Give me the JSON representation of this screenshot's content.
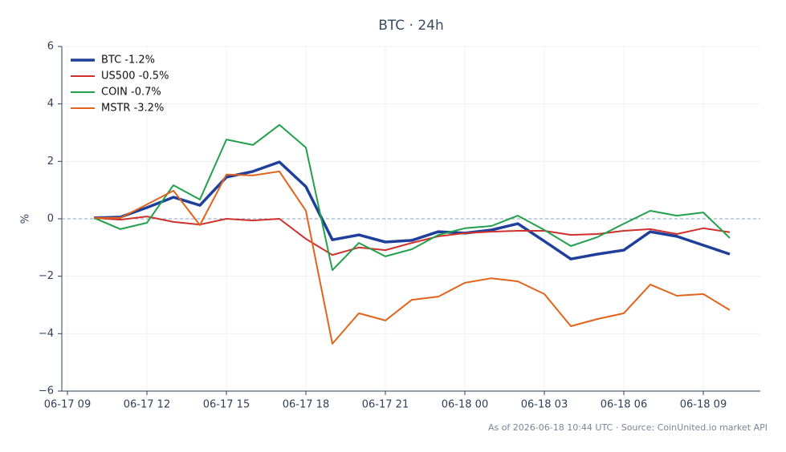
{
  "chart_data": {
    "type": "line",
    "title": "BTC · 24h",
    "y_label": "%",
    "note": "As of 2026-06-18 10:44 UTC · Source: CoinUnited.io market API",
    "x": [
      "06-17 10",
      "06-17 11",
      "06-17 12",
      "06-17 13",
      "06-17 14",
      "06-17 15",
      "06-17 16",
      "06-17 17",
      "06-17 18",
      "06-17 19",
      "06-17 20",
      "06-17 21",
      "06-17 22",
      "06-17 23",
      "06-18 00",
      "06-18 01",
      "06-18 02",
      "06-18 03",
      "06-18 04",
      "06-18 05",
      "06-18 06",
      "06-18 07",
      "06-18 08",
      "06-18 09",
      "06-18 10"
    ],
    "xlim": [
      "06-17 09",
      "06-18 11"
    ],
    "xticks": [
      "06-17 09",
      "06-17 12",
      "06-17 15",
      "06-17 18",
      "06-17 21",
      "06-18 00",
      "06-18 03",
      "06-18 06",
      "06-18 09"
    ],
    "ylim": [
      -6,
      6
    ],
    "yticks": [
      {
        "value": -6,
        "label": "−6"
      },
      {
        "value": -4,
        "label": "−4"
      },
      {
        "value": -2,
        "label": "−2"
      },
      0,
      2,
      4,
      6
    ],
    "grid": true,
    "legend": "upper left",
    "zero_line": true,
    "series": [
      {
        "name": "BTC -1.2%",
        "color": "#1f3f9a",
        "line_width": 3.5,
        "values": [
          0.03,
          0.06,
          0.39,
          0.75,
          0.47,
          1.45,
          1.65,
          1.98,
          1.12,
          -0.73,
          -0.56,
          -0.81,
          -0.75,
          -0.45,
          -0.5,
          -0.39,
          -0.17,
          -0.78,
          -1.4,
          -1.23,
          -1.09,
          -0.45,
          -0.61,
          -0.92,
          -1.23
        ]
      },
      {
        "name": "US500 -0.5%",
        "color": "#d0312d",
        "line_width": 2,
        "values": [
          0.03,
          -0.03,
          0.08,
          -0.11,
          -0.2,
          0,
          -0.06,
          0,
          -0.7,
          -1.26,
          -1.0,
          -1.09,
          -0.84,
          -0.61,
          -0.5,
          -0.45,
          -0.42,
          -0.42,
          -0.56,
          -0.53,
          -0.42,
          -0.36,
          -0.53,
          -0.33,
          -0.47
        ]
      },
      {
        "name": "COIN -0.7%",
        "color": "#22a04b",
        "line_width": 2,
        "values": [
          0.03,
          -0.36,
          -0.14,
          1.17,
          0.67,
          2.76,
          2.57,
          3.27,
          2.48,
          -1.79,
          -0.84,
          -1.31,
          -1.06,
          -0.56,
          -0.33,
          -0.25,
          0.11,
          -0.39,
          -0.95,
          -0.64,
          -0.17,
          0.28,
          0.11,
          0.22,
          -0.67
        ]
      },
      {
        "name": "MSTR -3.2%",
        "color": "#e0641b",
        "line_width": 2,
        "values": [
          0.03,
          0.03,
          0.5,
          0.98,
          -0.22,
          1.54,
          1.51,
          1.65,
          0.28,
          -4.35,
          -3.29,
          -3.54,
          -2.82,
          -2.71,
          -2.23,
          -2.07,
          -2.18,
          -2.62,
          -3.74,
          -3.49,
          -3.29,
          -2.29,
          -2.68,
          -2.62,
          -3.18
        ]
      }
    ]
  }
}
